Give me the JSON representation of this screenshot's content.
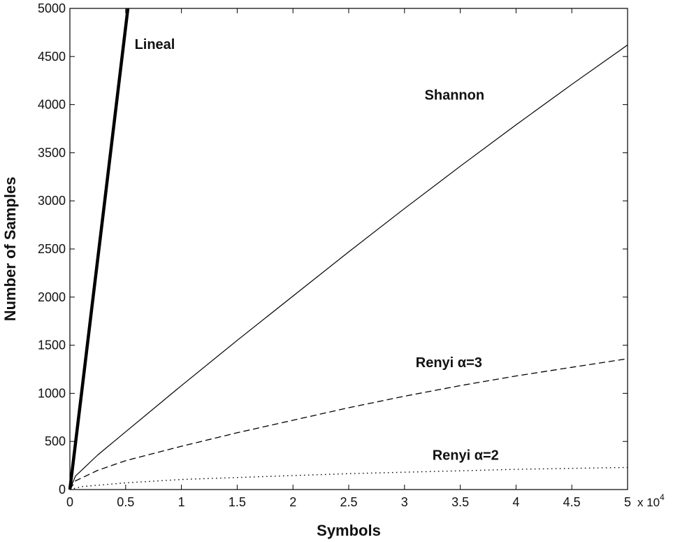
{
  "chart_data": {
    "type": "line",
    "title": "",
    "xlabel": "Symbols",
    "ylabel": "Number of Samples",
    "x_multiplier_label": "x 10",
    "x_multiplier_exponent": "4",
    "xlim": [
      0,
      5
    ],
    "ylim": [
      0,
      5000
    ],
    "xticks": [
      "0",
      "0.5",
      "1",
      "1.5",
      "2",
      "2.5",
      "3",
      "3.5",
      "4",
      "4.5",
      "5"
    ],
    "yticks": [
      "0",
      "500",
      "1000",
      "1500",
      "2000",
      "2500",
      "3000",
      "3500",
      "4000",
      "4500",
      "5000"
    ],
    "grid": false,
    "legend": "none",
    "series": [
      {
        "name": "Lineal",
        "style": "thick-solid",
        "x": [
          0,
          0.1,
          0.2,
          0.3,
          0.4,
          0.52
        ],
        "y": [
          0,
          960,
          1920,
          2880,
          3840,
          5000
        ]
      },
      {
        "name": "Shannon",
        "style": "solid",
        "x": [
          0,
          0.05,
          0.25,
          0.5,
          1,
          1.5,
          2,
          2.5,
          3,
          3.5,
          4,
          4.5,
          5
        ],
        "y": [
          0,
          140,
          360,
          600,
          1080,
          1550,
          2010,
          2470,
          2920,
          3360,
          3790,
          4210,
          4620
        ]
      },
      {
        "name": "Renyi α=3",
        "style": "dashed",
        "x": [
          0,
          0.05,
          0.25,
          0.5,
          1,
          1.5,
          2,
          2.5,
          3,
          3.5,
          4,
          4.5,
          5
        ],
        "y": [
          0,
          90,
          200,
          300,
          450,
          590,
          720,
          850,
          970,
          1080,
          1180,
          1270,
          1360
        ]
      },
      {
        "name": "Renyi α=2",
        "style": "dotted",
        "x": [
          0,
          0.1,
          0.5,
          1,
          1.5,
          2,
          2.5,
          3,
          3.5,
          4,
          4.5,
          5
        ],
        "y": [
          0,
          30,
          70,
          105,
          125,
          145,
          165,
          180,
          195,
          210,
          220,
          230
        ]
      }
    ],
    "annotations": [
      {
        "text": "Lineal",
        "x": 0.58,
        "y": 4580
      },
      {
        "text": "Shannon",
        "x": 3.18,
        "y": 4050
      },
      {
        "text": "Renyi α=3",
        "x": 3.1,
        "y": 1270
      },
      {
        "text": "Renyi α=2",
        "x": 3.25,
        "y": 310
      }
    ]
  }
}
